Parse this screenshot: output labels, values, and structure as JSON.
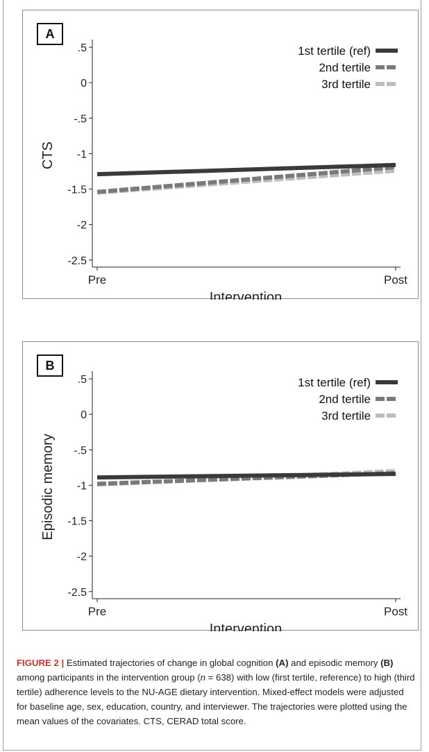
{
  "chart_data": [
    {
      "type": "line",
      "panel_label": "A",
      "xlabel": "Intervention",
      "ylabel": "CTS",
      "categories": [
        "Pre",
        "Post"
      ],
      "yticks": [
        ".5",
        "0",
        "-.5",
        "-1",
        "-1.5",
        "-2",
        "-2.5"
      ],
      "ylim": [
        -2.6,
        0.55
      ],
      "legend_position": "top-right",
      "series": [
        {
          "name": "1st tertile (ref)",
          "values": [
            -1.29,
            -1.16
          ],
          "color": "#3a3a3a",
          "style": "solid"
        },
        {
          "name": "2nd tertile",
          "values": [
            -1.54,
            -1.19
          ],
          "color": "#7a7a7a",
          "style": "dashed"
        },
        {
          "name": "3rd tertile",
          "values": [
            -1.55,
            -1.24
          ],
          "color": "#bdbdbd",
          "style": "dashed"
        }
      ]
    },
    {
      "type": "line",
      "panel_label": "B",
      "xlabel": "Intervention",
      "ylabel": "Episodic memory",
      "categories": [
        "Pre",
        "Post"
      ],
      "yticks": [
        ".5",
        "0",
        "-.5",
        "-1",
        "-1.5",
        "-2",
        "-2.5"
      ],
      "ylim": [
        -2.6,
        0.55
      ],
      "legend_position": "top-right",
      "series": [
        {
          "name": "1st tertile (ref)",
          "values": [
            -0.89,
            -0.84
          ],
          "color": "#3a3a3a",
          "style": "solid"
        },
        {
          "name": "2nd tertile",
          "values": [
            -0.98,
            -0.83
          ],
          "color": "#7a7a7a",
          "style": "dashed"
        },
        {
          "name": "3rd tertile",
          "values": [
            -0.99,
            -0.8
          ],
          "color": "#bdbdbd",
          "style": "dashed"
        }
      ]
    }
  ],
  "caption": {
    "lead": "FIGURE 2 |",
    "t1": " Estimated trajectories of change in global cognition ",
    "bA": "(A)",
    "t2": " and episodic memory ",
    "bB": "(B)",
    "t3": " among participants in the intervention group (",
    "n_var": "n",
    "t4": " = 638) with low (first tertile, reference) to high (third tertile) adherence levels to the NU-AGE dietary intervention. Mixed-effect models were adjusted for baseline age, sex, education, country, and interviewer. The trajectories were plotted using the mean values of the covariates. CTS, CERAD total score."
  }
}
